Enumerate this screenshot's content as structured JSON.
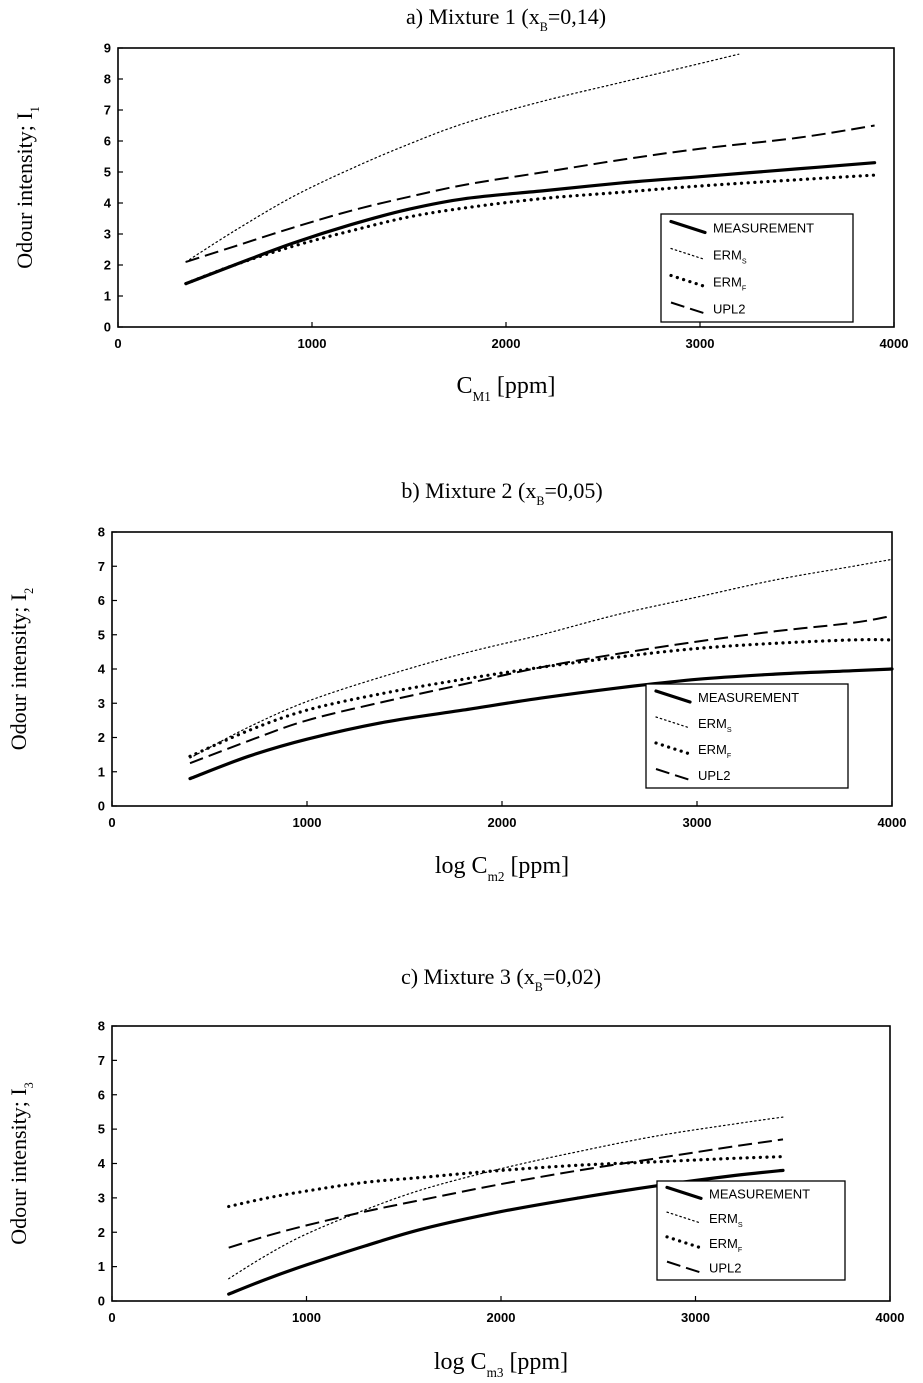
{
  "chart_data": [
    {
      "type": "line",
      "panel": "a",
      "title": {
        "prefix": "a) Mixture 1 (x",
        "sub": "B",
        "suffix": "=0,14)"
      },
      "ylabel": {
        "main": "Odour intensity; I",
        "sub": "1"
      },
      "xlabel": {
        "main": "C",
        "sub": "M1",
        "suffix": " [ppm]"
      },
      "xlim": [
        0,
        4000
      ],
      "ylim": [
        0,
        9
      ],
      "xticks": [
        "0",
        "1000",
        "2000",
        "3000",
        "4000"
      ],
      "yticks": [
        "0",
        "1",
        "2",
        "3",
        "4",
        "5",
        "6",
        "7",
        "8",
        "9"
      ],
      "legend": {
        "placement": "bottom-right",
        "entries": [
          {
            "label": "MEASUREMENT",
            "sub": "",
            "style": "solid"
          },
          {
            "label": "ERM",
            "sub": "S",
            "style": "thin-dot"
          },
          {
            "label": "ERM",
            "sub": "F",
            "style": "dot"
          },
          {
            "label": "UPL2",
            "sub": "",
            "style": "dash"
          }
        ]
      },
      "series": [
        {
          "name": "MEASUREMENT",
          "style": "solid",
          "x": [
            350,
            600,
            900,
            1200,
            1500,
            1800,
            2200,
            2600,
            3000,
            3500,
            3900
          ],
          "y": [
            1.4,
            2.0,
            2.7,
            3.3,
            3.8,
            4.15,
            4.4,
            4.65,
            4.85,
            5.1,
            5.3
          ]
        },
        {
          "name": "ERM_S",
          "style": "thin-dot",
          "x": [
            350,
            600,
            900,
            1200,
            1500,
            1800,
            2200,
            2600,
            3000,
            3200
          ],
          "y": [
            2.1,
            3.1,
            4.2,
            5.1,
            5.9,
            6.6,
            7.3,
            7.9,
            8.5,
            8.8
          ]
        },
        {
          "name": "ERM_F",
          "style": "dot",
          "x": [
            350,
            600,
            900,
            1200,
            1500,
            1800,
            2200,
            2600,
            3000,
            3500,
            3900
          ],
          "y": [
            1.4,
            2.0,
            2.6,
            3.1,
            3.55,
            3.85,
            4.15,
            4.35,
            4.55,
            4.75,
            4.9
          ]
        },
        {
          "name": "UPL2",
          "style": "dash",
          "x": [
            350,
            600,
            900,
            1200,
            1500,
            1800,
            2200,
            2600,
            3000,
            3500,
            3900
          ],
          "y": [
            2.1,
            2.6,
            3.2,
            3.75,
            4.2,
            4.6,
            5.0,
            5.4,
            5.75,
            6.1,
            6.5
          ]
        }
      ]
    },
    {
      "type": "line",
      "panel": "b",
      "title": {
        "prefix": "b) Mixture 2 (x",
        "sub": "B",
        "suffix": "=0,05)"
      },
      "ylabel": {
        "main": "Odour intensity; I",
        "sub": "2"
      },
      "xlabel": {
        "main": "log C",
        "sub": "m2",
        "suffix": " [ppm]"
      },
      "xlim": [
        0,
        4000
      ],
      "ylim": [
        0,
        8
      ],
      "xticks": [
        "0",
        "1000",
        "2000",
        "3000",
        "4000"
      ],
      "yticks": [
        "0",
        "1",
        "2",
        "3",
        "4",
        "5",
        "6",
        "7",
        "8"
      ],
      "legend": {
        "placement": "bottom-right",
        "entries": [
          {
            "label": "MEASUREMENT",
            "sub": "",
            "style": "solid"
          },
          {
            "label": "ERM",
            "sub": "S",
            "style": "thin-dot"
          },
          {
            "label": "ERM",
            "sub": "F",
            "style": "dot"
          },
          {
            "label": "UPL2",
            "sub": "",
            "style": "dash"
          }
        ]
      },
      "series": [
        {
          "name": "MEASUREMENT",
          "style": "solid",
          "x": [
            400,
            700,
            1000,
            1400,
            1800,
            2200,
            2600,
            3000,
            3400,
            3800,
            4000
          ],
          "y": [
            0.8,
            1.45,
            1.95,
            2.45,
            2.8,
            3.15,
            3.45,
            3.7,
            3.85,
            3.95,
            4.0
          ]
        },
        {
          "name": "ERM_S",
          "style": "thin-dot",
          "x": [
            400,
            700,
            1000,
            1400,
            1800,
            2200,
            2600,
            3000,
            3400,
            3800,
            4000
          ],
          "y": [
            1.4,
            2.3,
            3.05,
            3.8,
            4.45,
            5.0,
            5.6,
            6.1,
            6.6,
            7.0,
            7.2
          ]
        },
        {
          "name": "ERM_F",
          "style": "dot",
          "x": [
            400,
            700,
            1000,
            1400,
            1800,
            2200,
            2600,
            3000,
            3400,
            3800,
            4000
          ],
          "y": [
            1.45,
            2.2,
            2.8,
            3.3,
            3.7,
            4.05,
            4.35,
            4.6,
            4.75,
            4.85,
            4.85
          ]
        },
        {
          "name": "UPL2",
          "style": "dash",
          "x": [
            400,
            700,
            1000,
            1400,
            1800,
            2200,
            2600,
            3000,
            3400,
            3800,
            4000
          ],
          "y": [
            1.25,
            1.9,
            2.5,
            3.05,
            3.55,
            4.05,
            4.45,
            4.8,
            5.1,
            5.35,
            5.55
          ]
        }
      ]
    },
    {
      "type": "line",
      "panel": "c",
      "title": {
        "prefix": "c) Mixture 3 (x",
        "sub": "B",
        "suffix": "=0,02)"
      },
      "ylabel": {
        "main": "Odour intensity; I",
        "sub": "3"
      },
      "xlabel": {
        "main": "log C",
        "sub": "m3",
        "suffix": " [ppm]"
      },
      "xlim": [
        0,
        4000
      ],
      "ylim": [
        0,
        8
      ],
      "xticks": [
        "0",
        "1000",
        "2000",
        "3000",
        "4000"
      ],
      "yticks": [
        "0",
        "1",
        "2",
        "3",
        "4",
        "5",
        "6",
        "7",
        "8"
      ],
      "legend": {
        "placement": "bottom-right",
        "entries": [
          {
            "label": "MEASUREMENT",
            "sub": "",
            "style": "solid"
          },
          {
            "label": "ERM",
            "sub": "S",
            "style": "thin-dot"
          },
          {
            "label": "ERM",
            "sub": "F",
            "style": "dot"
          },
          {
            "label": "UPL2",
            "sub": "",
            "style": "dash"
          }
        ]
      },
      "series": [
        {
          "name": "MEASUREMENT",
          "style": "solid",
          "x": [
            600,
            800,
            1000,
            1300,
            1600,
            2000,
            2400,
            2800,
            3200,
            3450
          ],
          "y": [
            0.2,
            0.65,
            1.05,
            1.6,
            2.1,
            2.6,
            3.0,
            3.35,
            3.65,
            3.8
          ]
        },
        {
          "name": "ERM_S",
          "style": "thin-dot",
          "x": [
            600,
            800,
            1000,
            1300,
            1600,
            2000,
            2400,
            2800,
            3200,
            3450
          ],
          "y": [
            0.65,
            1.35,
            1.95,
            2.65,
            3.25,
            3.85,
            4.35,
            4.8,
            5.15,
            5.35
          ]
        },
        {
          "name": "ERM_F",
          "style": "dot",
          "x": [
            600,
            800,
            1000,
            1300,
            1600,
            2000,
            2400,
            2800,
            3200,
            3450
          ],
          "y": [
            2.75,
            3.0,
            3.2,
            3.45,
            3.6,
            3.8,
            3.95,
            4.05,
            4.15,
            4.2
          ]
        },
        {
          "name": "UPL2",
          "style": "dash",
          "x": [
            600,
            800,
            1000,
            1300,
            1600,
            2000,
            2400,
            2800,
            3200,
            3450
          ],
          "y": [
            1.55,
            1.9,
            2.2,
            2.6,
            2.95,
            3.4,
            3.8,
            4.15,
            4.5,
            4.7
          ]
        }
      ]
    }
  ]
}
